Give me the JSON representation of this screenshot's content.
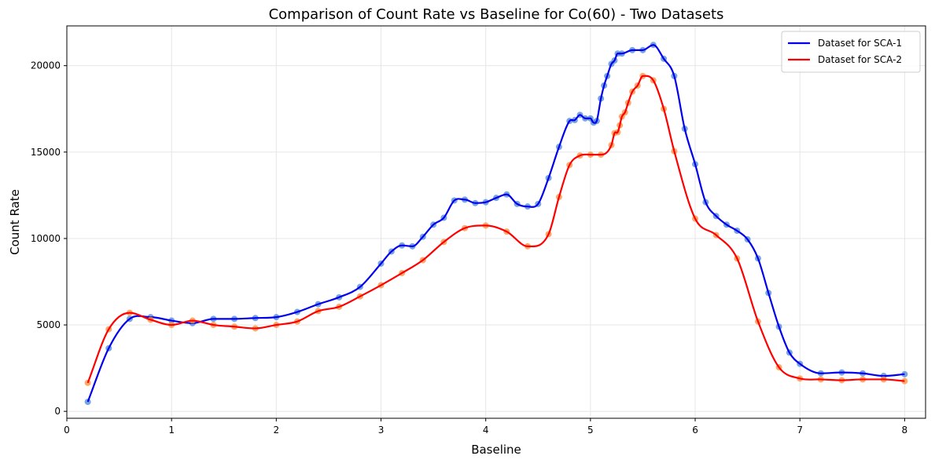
{
  "chart_data": {
    "type": "line",
    "title": "Comparison of Count Rate vs Baseline for Co(60) - Two Datasets",
    "xlabel": "Baseline",
    "ylabel": "Count Rate",
    "xlim": [
      -0.0,
      8.2
    ],
    "ylim": [
      -400,
      22300
    ],
    "xticks": [
      0,
      1,
      2,
      3,
      4,
      5,
      6,
      7,
      8
    ],
    "yticks": [
      0,
      5000,
      10000,
      15000,
      20000
    ],
    "grid": true,
    "legend_position": "top-right",
    "series": [
      {
        "name": "Dataset for SCA-1",
        "line_color": "#0000ee",
        "marker_color": "#4a86d8",
        "x": [
          0.2,
          0.4,
          0.6,
          0.8,
          1.0,
          1.2,
          1.4,
          1.6,
          1.8,
          2.0,
          2.2,
          2.4,
          2.6,
          2.8,
          3.0,
          3.1,
          3.2,
          3.3,
          3.4,
          3.5,
          3.6,
          3.7,
          3.8,
          3.9,
          4.0,
          4.1,
          4.2,
          4.3,
          4.4,
          4.5,
          4.6,
          4.7,
          4.8,
          4.85,
          4.9,
          4.95,
          5.0,
          5.03,
          5.06,
          5.1,
          5.13,
          5.16,
          5.2,
          5.23,
          5.26,
          5.3,
          5.4,
          5.5,
          5.6,
          5.7,
          5.8,
          5.9,
          6.0,
          6.1,
          6.2,
          6.3,
          6.4,
          6.5,
          6.6,
          6.7,
          6.8,
          6.9,
          7.0,
          7.2,
          7.4,
          7.6,
          7.8,
          8.0
        ],
        "values": [
          550,
          3650,
          5350,
          5450,
          5250,
          5100,
          5350,
          5350,
          5400,
          5450,
          5750,
          6200,
          6600,
          7200,
          8550,
          9250,
          9600,
          9550,
          10100,
          10800,
          11200,
          12200,
          12250,
          12050,
          12100,
          12350,
          12550,
          12000,
          11850,
          12000,
          13500,
          15300,
          16800,
          16850,
          17150,
          16950,
          16950,
          16700,
          16800,
          18100,
          18850,
          19400,
          20100,
          20300,
          20700,
          20700,
          20900,
          20900,
          21200,
          20400,
          19400,
          16350,
          14300,
          12100,
          11300,
          10800,
          10450,
          9950,
          8850,
          6850,
          4900,
          3400,
          2750,
          2200,
          2250,
          2200,
          2050,
          2150
        ]
      },
      {
        "name": "Dataset for SCA-2",
        "line_color": "#ff0000",
        "marker_color": "#ff8c3a",
        "x": [
          0.2,
          0.4,
          0.6,
          0.8,
          1.0,
          1.2,
          1.4,
          1.6,
          1.8,
          2.0,
          2.2,
          2.4,
          2.6,
          2.8,
          3.0,
          3.2,
          3.4,
          3.6,
          3.8,
          4.0,
          4.2,
          4.4,
          4.6,
          4.7,
          4.8,
          4.9,
          5.0,
          5.1,
          5.2,
          5.23,
          5.26,
          5.28,
          5.3,
          5.33,
          5.36,
          5.4,
          5.45,
          5.5,
          5.6,
          5.7,
          5.8,
          6.0,
          6.2,
          6.4,
          6.6,
          6.8,
          7.0,
          7.2,
          7.4,
          7.6,
          7.8,
          8.0
        ],
        "values": [
          1650,
          4750,
          5700,
          5300,
          5000,
          5250,
          5000,
          4900,
          4800,
          5000,
          5200,
          5800,
          6050,
          6650,
          7300,
          8000,
          8750,
          9800,
          10600,
          10750,
          10400,
          9550,
          10250,
          12400,
          14250,
          14800,
          14850,
          14850,
          15400,
          16100,
          16150,
          16550,
          17050,
          17300,
          17850,
          18500,
          18850,
          19400,
          19150,
          17500,
          15050,
          11150,
          10200,
          8850,
          5200,
          2550,
          1900,
          1850,
          1800,
          1850,
          1850,
          1750
        ]
      }
    ]
  }
}
